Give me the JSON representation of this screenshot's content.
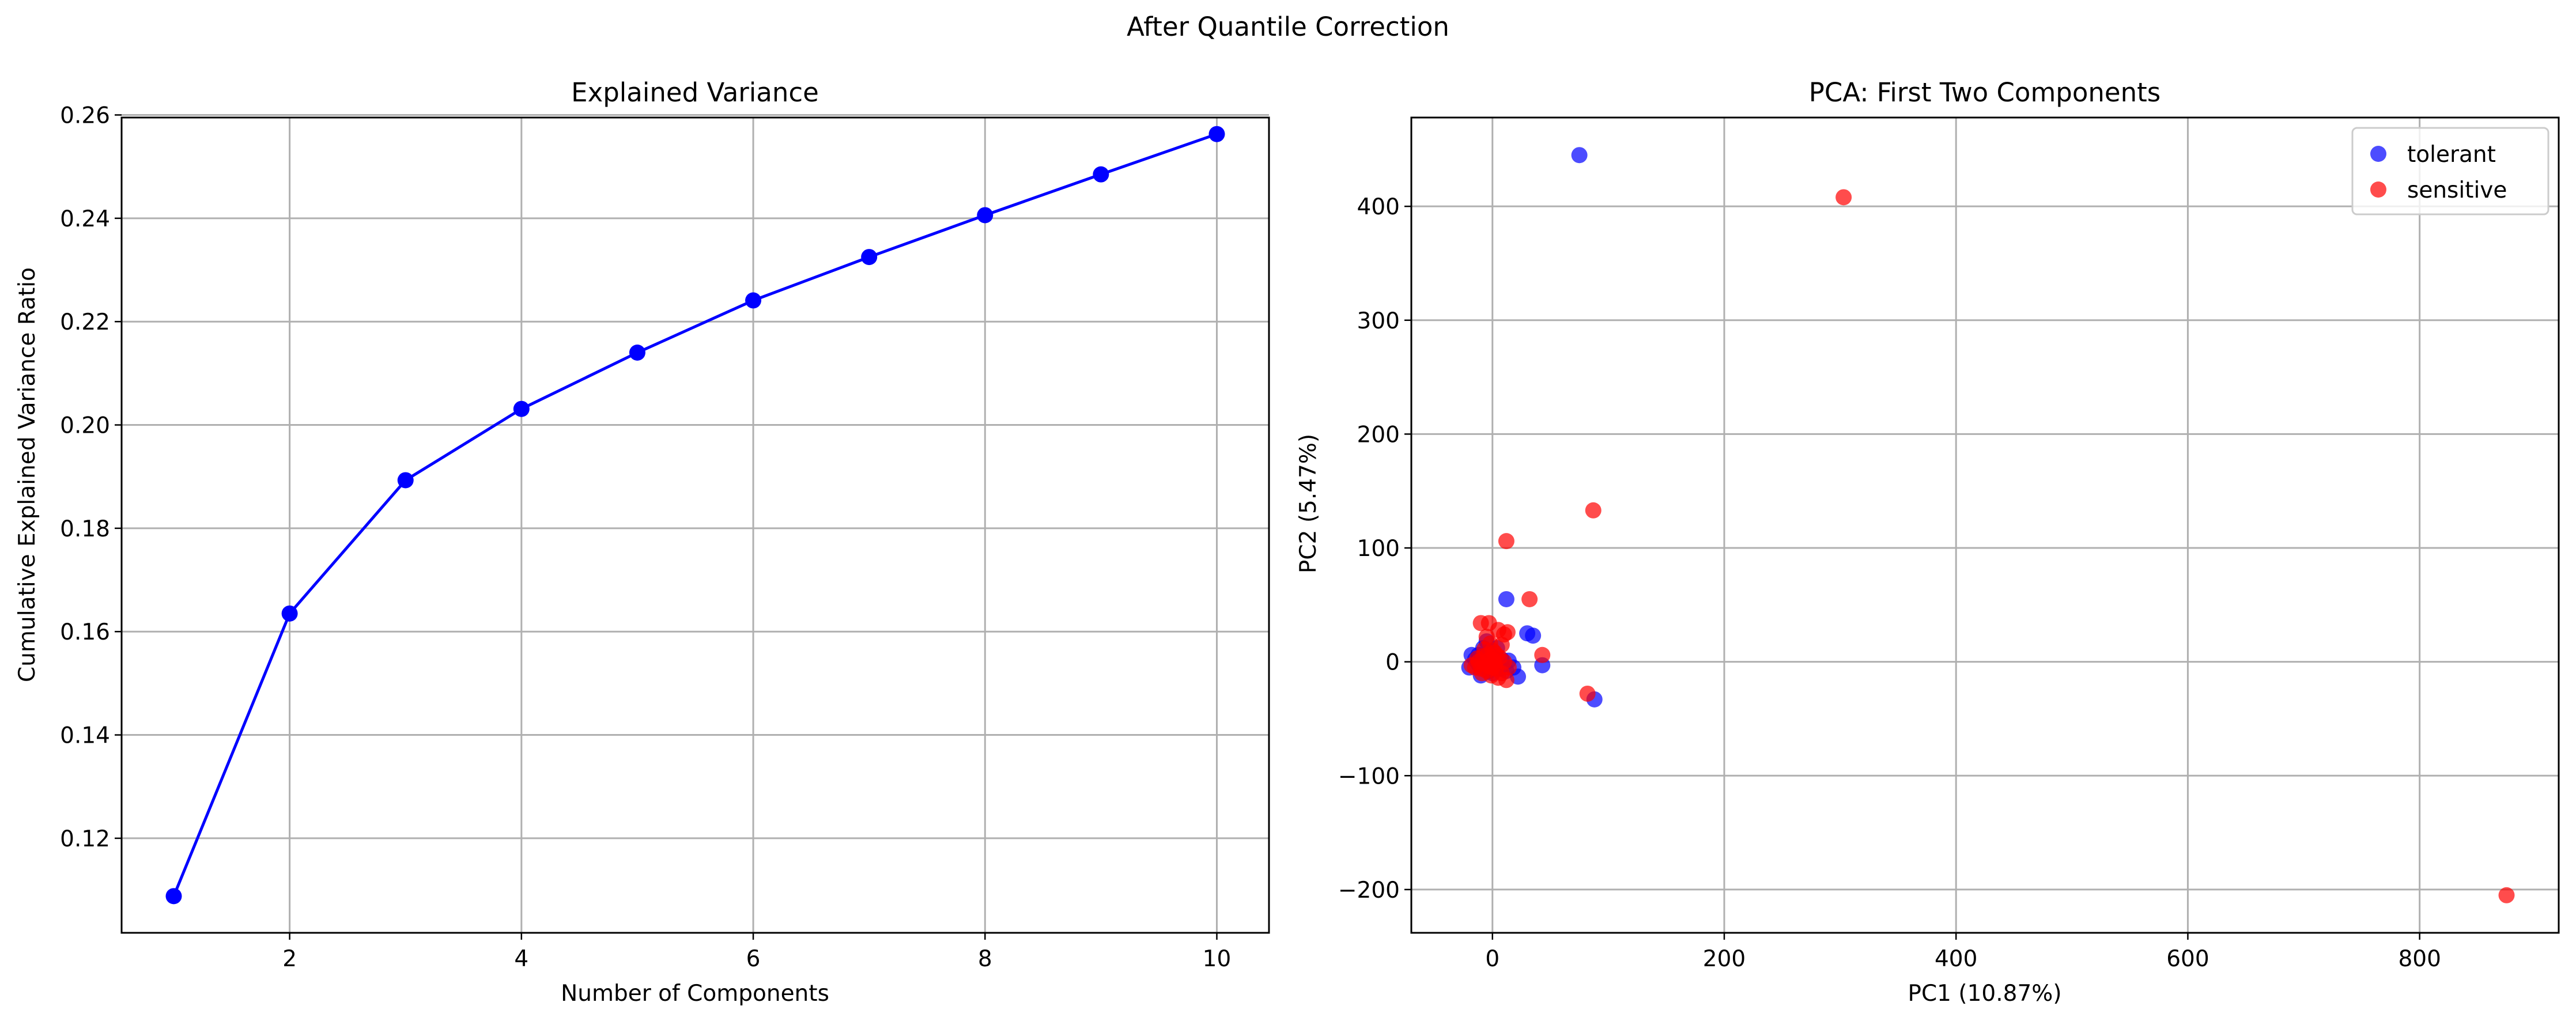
{
  "figure": {
    "suptitle": "After Quantile Correction"
  },
  "chart_data": [
    {
      "type": "line",
      "title": "Explained Variance",
      "xlabel": "Number of Components",
      "ylabel": "Cumulative Explained Variance Ratio",
      "x": [
        1,
        2,
        3,
        4,
        5,
        6,
        7,
        8,
        9,
        10
      ],
      "series": [
        {
          "values": [
            0.1088,
            0.1635,
            0.1893,
            0.2031,
            0.214,
            0.2241,
            0.2325,
            0.2406,
            0.2485,
            0.2563
          ],
          "color": "#0000ff",
          "marker": "circle"
        }
      ],
      "xlim": [
        0.55,
        10.45
      ],
      "ylim": [
        0.1017,
        0.2595
      ],
      "xticks": [
        2,
        4,
        6,
        8,
        10
      ],
      "xtick_labels": [
        "2",
        "4",
        "6",
        "8",
        "10"
      ],
      "yticks": [
        0.12,
        0.14,
        0.16,
        0.18,
        0.2,
        0.22,
        0.24,
        0.26
      ],
      "ytick_labels": [
        "0.12",
        "0.14",
        "0.16",
        "0.18",
        "0.20",
        "0.22",
        "0.24",
        "0.26"
      ],
      "grid": true
    },
    {
      "type": "scatter",
      "title": "PCA: First Two Components",
      "xlabel": "PC1 (10.87%)",
      "ylabel": "PC2 (5.47%)",
      "xlim": [
        -70,
        920
      ],
      "ylim": [
        -238,
        478
      ],
      "xticks": [
        0,
        200,
        400,
        600,
        800
      ],
      "xtick_labels": [
        "0",
        "200",
        "400",
        "600",
        "800"
      ],
      "yticks": [
        -200,
        -100,
        0,
        100,
        200,
        300,
        400
      ],
      "ytick_labels": [
        "−200",
        "−100",
        "0",
        "100",
        "200",
        "300",
        "400"
      ],
      "grid": true,
      "legend": {
        "position": "top-right"
      },
      "series": [
        {
          "name": "tolerant",
          "color": "#0000ff",
          "opacity": 0.7,
          "points": [
            [
              75,
              445
            ],
            [
              12,
              55
            ],
            [
              30,
              25
            ],
            [
              35,
              23
            ],
            [
              88,
              -33
            ],
            [
              43,
              -3
            ],
            [
              22,
              -13
            ],
            [
              18,
              -5
            ],
            [
              -5,
              18
            ],
            [
              -8,
              12
            ],
            [
              -12,
              6
            ],
            [
              -15,
              2
            ],
            [
              -20,
              -5
            ],
            [
              -18,
              6
            ],
            [
              -10,
              -12
            ],
            [
              -4,
              -2
            ],
            [
              2,
              4
            ],
            [
              6,
              -6
            ],
            [
              8,
              2
            ],
            [
              12,
              -8
            ],
            [
              -2,
              9
            ],
            [
              0,
              -10
            ],
            [
              4,
              12
            ],
            [
              -6,
              3
            ],
            [
              3,
              -3
            ],
            [
              -12,
              -2
            ],
            [
              14,
              1
            ],
            [
              -3,
              -8
            ]
          ]
        },
        {
          "name": "sensitive",
          "color": "#ff0000",
          "opacity": 0.7,
          "points": [
            [
              303,
              408
            ],
            [
              875,
              -205
            ],
            [
              87,
              133
            ],
            [
              12,
              106
            ],
            [
              32,
              55
            ],
            [
              43,
              6
            ],
            [
              82,
              -28
            ],
            [
              -10,
              34
            ],
            [
              -3,
              34
            ],
            [
              10,
              24
            ],
            [
              13,
              26
            ],
            [
              5,
              28
            ],
            [
              -5,
              22
            ],
            [
              -2,
              16
            ],
            [
              0,
              10
            ],
            [
              -8,
              5
            ],
            [
              -12,
              0
            ],
            [
              -15,
              -5
            ],
            [
              -5,
              -8
            ],
            [
              2,
              -2
            ],
            [
              8,
              -10
            ],
            [
              12,
              -16
            ],
            [
              4,
              5
            ],
            [
              -2,
              -4
            ],
            [
              6,
              4
            ],
            [
              -6,
              -2
            ],
            [
              -18,
              -3
            ],
            [
              -9,
              -10
            ],
            [
              1,
              1
            ],
            [
              3,
              -6
            ],
            [
              -4,
              6
            ],
            [
              8,
              15
            ],
            [
              -1,
              -12
            ],
            [
              5,
              -14
            ],
            [
              -13,
              3
            ],
            [
              -7,
              11
            ],
            [
              10,
              0
            ],
            [
              -2,
              2
            ],
            [
              2,
              8
            ],
            [
              -10,
              -6
            ],
            [
              14,
              -5
            ],
            [
              0,
              -5
            ]
          ]
        }
      ]
    }
  ]
}
